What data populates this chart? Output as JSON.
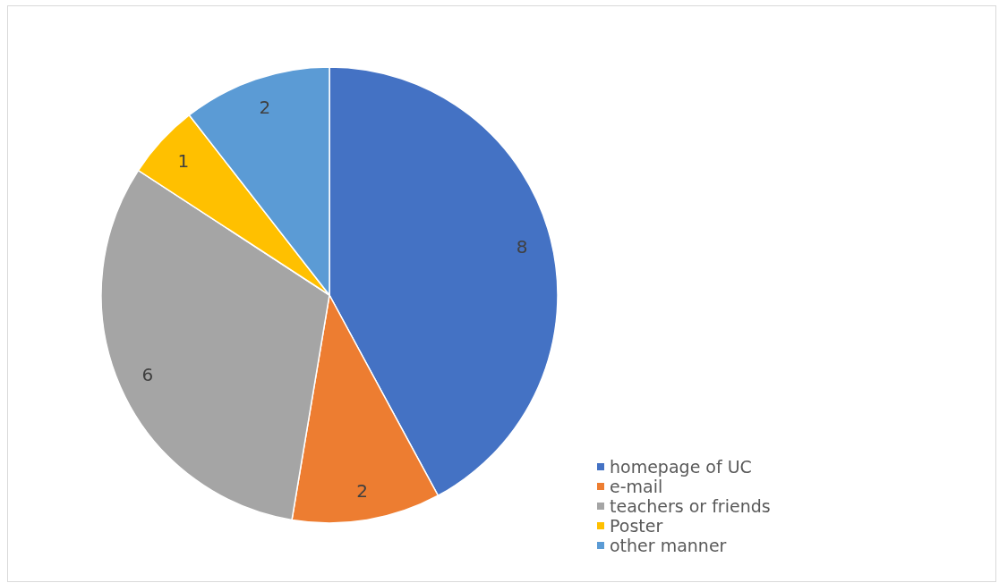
{
  "chart_data": {
    "type": "pie",
    "categories": [
      "homepage of UC",
      "e-mail",
      "teachers or friends",
      "Poster",
      "other manner"
    ],
    "values": [
      8,
      2,
      6,
      1,
      2
    ],
    "colors": [
      "#4472c4",
      "#ed7d31",
      "#a5a5a5",
      "#ffc000",
      "#5b9bd5"
    ],
    "data_labels": true,
    "legend": "bottom right"
  }
}
